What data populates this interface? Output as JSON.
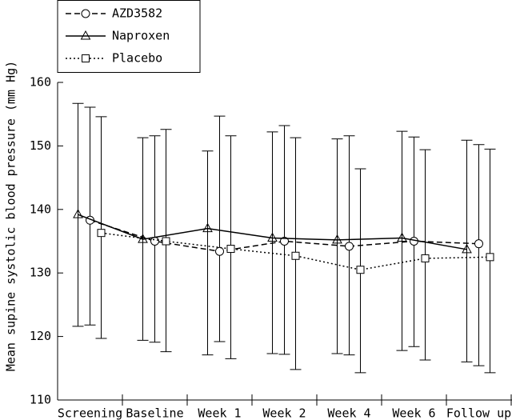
{
  "chart_data": {
    "type": "line",
    "y_label": "Mean supine systolic blood pressure (mm Hg)",
    "categories": [
      "Screening",
      "Baseline",
      "Week 1",
      "Week 2",
      "Week 4",
      "Week 6",
      "Follow up"
    ],
    "ylim": [
      110,
      160
    ],
    "yticks": [
      110,
      120,
      130,
      140,
      150,
      160
    ],
    "legend": "top-left",
    "series": [
      {
        "name": "AZD3582",
        "color": "#000000",
        "dash": "dashed",
        "marker": "circle",
        "values": [
          138.3,
          135.0,
          133.4,
          135.0,
          134.2,
          135.0,
          134.6
        ],
        "upper": [
          156.1,
          151.6,
          154.7,
          153.2,
          151.6,
          151.4,
          150.2
        ],
        "lower": [
          121.8,
          119.1,
          119.2,
          117.2,
          117.1,
          118.4,
          115.4
        ]
      },
      {
        "name": "Naproxen",
        "color": "#000000",
        "dash": "solid",
        "marker": "triangle",
        "values": [
          139.2,
          135.3,
          137.0,
          135.5,
          135.2,
          135.5,
          133.7
        ],
        "upper": [
          156.7,
          151.3,
          149.2,
          152.2,
          151.1,
          152.3,
          150.9
        ],
        "lower": [
          121.6,
          119.4,
          117.1,
          117.3,
          117.3,
          117.8,
          116.0
        ]
      },
      {
        "name": "Placebo",
        "color": "#000000",
        "dash": "dotted",
        "marker": "square",
        "values": [
          136.3,
          135.0,
          133.8,
          132.7,
          130.5,
          132.3,
          132.5
        ],
        "upper": [
          154.6,
          152.6,
          151.6,
          151.3,
          146.4,
          149.4,
          149.5
        ],
        "lower": [
          119.7,
          117.6,
          116.5,
          114.8,
          114.3,
          116.3,
          114.3
        ]
      }
    ]
  }
}
